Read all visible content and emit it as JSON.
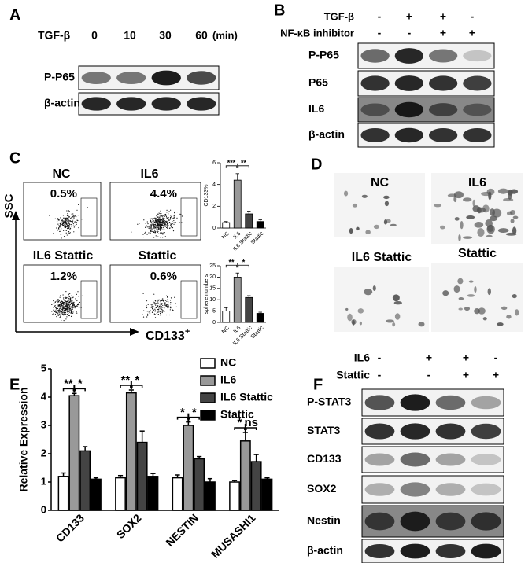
{
  "panels": {
    "a": {
      "label": "A",
      "treatment": "TGF-β",
      "times": [
        "0",
        "10",
        "30",
        "60"
      ],
      "unit": "(min)",
      "rows": [
        "P-P65",
        "β-actin"
      ]
    },
    "b": {
      "label": "B",
      "conditions": [
        {
          "name": "TGF-β",
          "signs": [
            "-",
            "+",
            "+",
            "-"
          ]
        },
        {
          "name": "NF-κB inhibitor",
          "signs": [
            "-",
            "-",
            "+",
            "+"
          ]
        }
      ],
      "rows": [
        "P-P65",
        "P65",
        "IL6",
        "β-actin"
      ]
    },
    "c": {
      "label": "C",
      "y_axis": "SSC",
      "x_axis": "CD133",
      "x_axis_sup": "+",
      "plots": [
        {
          "title": "NC",
          "percent": "0.5%"
        },
        {
          "title": "IL6",
          "percent": "4.4%"
        },
        {
          "title": "IL6 Stattic",
          "percent": "1.2%"
        },
        {
          "title": "Stattic",
          "percent": "0.6%"
        }
      ]
    },
    "d": {
      "label": "D",
      "images": [
        "NC",
        "IL6",
        "IL6 Stattic",
        "Stattic"
      ]
    },
    "e": {
      "label": "E"
    },
    "f": {
      "label": "F",
      "conditions": [
        {
          "name": "IL6",
          "signs": [
            "-",
            "+",
            "+",
            "-"
          ]
        },
        {
          "name": "Stattic",
          "signs": [
            "-",
            "-",
            "+",
            "+"
          ]
        }
      ],
      "rows": [
        "P-STAT3",
        "STAT3",
        "CD133",
        "SOX2",
        "Nestin",
        "β-actin"
      ]
    }
  },
  "chart_data": [
    {
      "type": "bar",
      "y_label": "CD133%",
      "categories": [
        "NC",
        "IL6",
        "IL6 Stattic",
        "Stattic"
      ],
      "values": [
        0.5,
        4.4,
        1.3,
        0.6
      ],
      "errors": [
        0.1,
        0.6,
        0.25,
        0.15
      ],
      "colors": [
        "#ffffff",
        "#999999",
        "#444444",
        "#000000"
      ],
      "ylim": [
        0,
        6
      ],
      "yticks": [
        0,
        2,
        4,
        6
      ],
      "significance": [
        "***",
        "**"
      ]
    },
    {
      "type": "bar",
      "y_label": "sphere numbers",
      "categories": [
        "NC",
        "IL6",
        "IL6 Stattic",
        "Stattic"
      ],
      "values": [
        5,
        20,
        11,
        4
      ],
      "errors": [
        1.5,
        1.8,
        0.8,
        0.5
      ],
      "colors": [
        "#ffffff",
        "#999999",
        "#444444",
        "#000000"
      ],
      "ylim": [
        0,
        25
      ],
      "yticks": [
        0,
        5,
        10,
        15,
        20,
        25
      ],
      "significance": [
        "**",
        "*"
      ]
    },
    {
      "type": "grouped-bar",
      "y_label": "Relative Expression",
      "categories": [
        "CD133",
        "SOX2",
        "NESTIN",
        "MUSASHI1"
      ],
      "series": [
        {
          "name": "NC",
          "color": "#ffffff",
          "values": [
            1.2,
            1.15,
            1.15,
            1.0
          ],
          "errors": [
            0.12,
            0.08,
            0.1,
            0.05
          ]
        },
        {
          "name": "IL6",
          "color": "#999999",
          "values": [
            4.05,
            4.15,
            3.0,
            2.45
          ],
          "errors": [
            0.08,
            0.1,
            0.12,
            0.3
          ]
        },
        {
          "name": "IL6 Stattic",
          "color": "#444444",
          "values": [
            2.1,
            2.4,
            1.82,
            1.72
          ],
          "errors": [
            0.15,
            0.4,
            0.08,
            0.25
          ]
        },
        {
          "name": "Stattic",
          "color": "#000000",
          "values": [
            1.1,
            1.2,
            1.0,
            1.1
          ],
          "errors": [
            0.05,
            0.1,
            0.12,
            0.05
          ]
        }
      ],
      "ylim": [
        0,
        5
      ],
      "yticks": [
        0,
        1,
        2,
        3,
        4,
        5
      ],
      "significance": [
        [
          "**",
          "*"
        ],
        [
          "**",
          "*"
        ],
        [
          "*",
          "*"
        ],
        [
          "*",
          "ns"
        ]
      ]
    }
  ]
}
